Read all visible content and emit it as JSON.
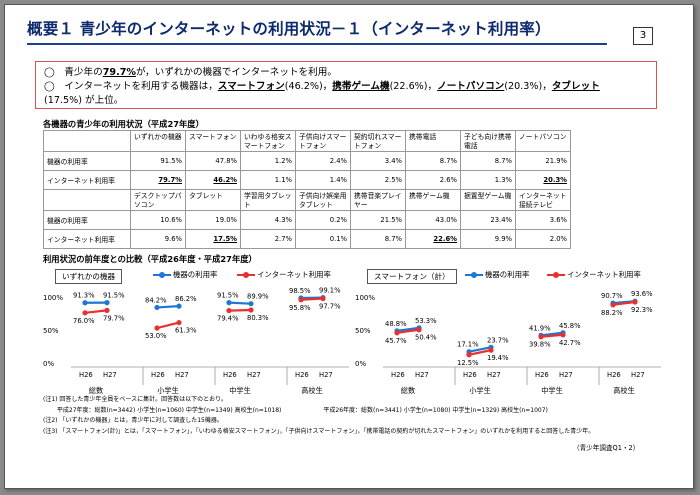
{
  "title": "概要１ 青少年のインターネットの利用状況－１（インターネット利用率）",
  "page_number": "3",
  "summary": {
    "line1_pre": "◯　青少年の",
    "line1_rate": "79.7%",
    "line1_post": "が，いずれかの機器でインターネットを利用。",
    "line2_pre": "◯　インターネットを利用する機器は，",
    "device1": "スマートフォン",
    "device1_val": "(46.2%)，",
    "device2": "携帯ゲーム機",
    "device2_val": "(22.6%)，",
    "device3": "ノートパソコン",
    "device3_val": "(20.3%)，",
    "device4": "タブレット",
    "line3": "(17.5%) が上位。"
  },
  "table_title": "各機器の青少年の利用状況（平成27年度）",
  "table": {
    "row1_headers": [
      "いずれかの機器",
      "スマートフォン",
      "いわゆる格安スマートフォン",
      "子供向けスマートフォン",
      "契約切れスマートフォン",
      "携帯電話",
      "子ども向け携帯電話",
      "ノートパソコン"
    ],
    "row1_usage_label": "機器の利用率",
    "row1_usage": [
      "91.5%",
      "47.8%",
      "1.2%",
      "2.4%",
      "3.4%",
      "8.7%",
      "8.7%",
      "21.9%"
    ],
    "row1_net_label": "インターネット利用率",
    "row1_net": [
      "79.7%",
      "46.2%",
      "1.1%",
      "1.4%",
      "2.5%",
      "2.6%",
      "1.3%",
      "20.3%"
    ],
    "row2_headers": [
      "デスクトップパソコン",
      "タブレット",
      "学習用タブレット",
      "子供向け娯楽用タブレット",
      "携帯音楽プレイヤー",
      "携帯ゲーム機",
      "据置型ゲーム機",
      "インターネット接続テレビ"
    ],
    "row2_usage_label": "機器の利用率",
    "row2_usage": [
      "10.6%",
      "19.0%",
      "4.3%",
      "0.2%",
      "21.5%",
      "43.0%",
      "23.4%",
      "3.6%"
    ],
    "row2_net_label": "インターネット利用率",
    "row2_net": [
      "9.6%",
      "17.5%",
      "2.7%",
      "0.1%",
      "8.7%",
      "22.6%",
      "9.9%",
      "2.0%"
    ]
  },
  "comparison_title": "利用状況の前年度との比較（平成26年度・平成27年度）",
  "colors": {
    "usage": "#1f77d4",
    "internet": "#e8312f",
    "summary_border": "#d9534f",
    "title": "#0d2a6e"
  },
  "chart_data": [
    {
      "type": "line",
      "title": "いずれかの機器",
      "x": [
        "H26",
        "H27"
      ],
      "groups": [
        "総数",
        "小学生",
        "中学生",
        "高校生"
      ],
      "y_ticks": [
        "100%",
        "50%",
        "0%"
      ],
      "ylim": [
        0,
        100
      ],
      "legend": "top",
      "series": [
        {
          "name": "機器の利用率",
          "values": {
            "総数": [
              91.3,
              91.5
            ],
            "小学生": [
              84.2,
              86.2
            ],
            "中学生": [
              91.5,
              89.9
            ],
            "高校生": [
              98.5,
              99.1
            ]
          }
        },
        {
          "name": "インターネット利用率",
          "values": {
            "総数": [
              76.0,
              79.7
            ],
            "小学生": [
              53.0,
              61.3
            ],
            "中学生": [
              79.4,
              80.3
            ],
            "高校生": [
              95.8,
              97.7
            ]
          }
        }
      ]
    },
    {
      "type": "line",
      "title": "スマートフォン（計）",
      "x": [
        "H26",
        "H27"
      ],
      "groups": [
        "総数",
        "小学生",
        "中学生",
        "高校生"
      ],
      "y_ticks": [
        "100%",
        "50%",
        "0%"
      ],
      "ylim": [
        0,
        100
      ],
      "legend": "top",
      "series": [
        {
          "name": "機器の利用率",
          "values": {
            "総数": [
              48.8,
              53.3
            ],
            "小学生": [
              17.1,
              23.7
            ],
            "中学生": [
              41.9,
              45.8
            ],
            "高校生": [
              90.7,
              93.6
            ]
          }
        },
        {
          "name": "インターネット利用率",
          "values": {
            "総数": [
              45.7,
              50.4
            ],
            "小学生": [
              12.5,
              19.4
            ],
            "中学生": [
              39.8,
              42.7
            ],
            "高校生": [
              88.2,
              92.3
            ]
          }
        }
      ]
    }
  ],
  "notes": [
    "(注1) 回答した青少年全員をベースに集計。回答数は以下のとおり。",
    "　　 平成27年度：総数(n=3442) 小学生(n=1060) 中学生(n=1349) 高校生(n=1018)　　　　　　　平成26年度：総数(n=3441) 小学生(n=1080) 中学生(n=1329) 高校生(n=1007)",
    "(注2) 「いずれかの機器」とは，青少年に対して調査した15機器。",
    "(注3) 「スマートフォン(計)」とは，「スマートフォン」，「いわゆる格安スマートフォン」，「子供向けスマートフォン」，「携帯電話の契約が切れたスマートフォン」のいずれかを利用すると回答した青少年。"
  ],
  "source": "（青少年調査Q1・2）"
}
